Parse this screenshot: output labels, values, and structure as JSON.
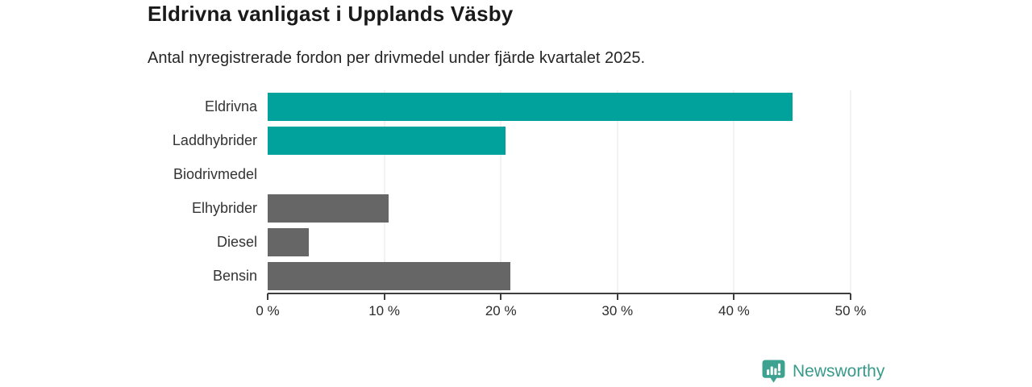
{
  "header": {
    "title": "Eldrivna vanligast i Upplands Väsby",
    "subtitle": "Antal nyregistrerade fordon per drivmedel under fjärde kvartalet 2025."
  },
  "chart_data": {
    "type": "bar",
    "orientation": "horizontal",
    "title": "Eldrivna vanligast i Upplands Väsby",
    "subtitle": "Antal nyregistrerade fordon per drivmedel under fjärde kvartalet 2025.",
    "categories": [
      "Eldrivna",
      "Laddhybrider",
      "Biodrivmedel",
      "Elhybrider",
      "Diesel",
      "Bensin"
    ],
    "values": [
      45.0,
      20.4,
      0,
      10.4,
      3.5,
      20.8
    ],
    "value_unit": "%",
    "bar_colors": [
      "#00a29b",
      "#00a29b",
      "#666666",
      "#666666",
      "#666666",
      "#666666"
    ],
    "xlim": [
      0,
      50
    ],
    "x_ticks": [
      0,
      10,
      20,
      30,
      40,
      50
    ],
    "x_tick_labels": [
      "0 %",
      "10 %",
      "20 %",
      "30 %",
      "40 %",
      "50 %"
    ],
    "xlabel": "",
    "ylabel": "",
    "grid": "vertical",
    "legend": "none"
  },
  "colors": {
    "accent_teal": "#00a29b",
    "bar_gray": "#666666",
    "logo_teal": "#3da28f",
    "gridline": "#e4e4e4",
    "axis": "#3e3e3e"
  },
  "footer": {
    "brand": "Newsworthy",
    "logo_icon": "bar-chart-badge-icon"
  }
}
